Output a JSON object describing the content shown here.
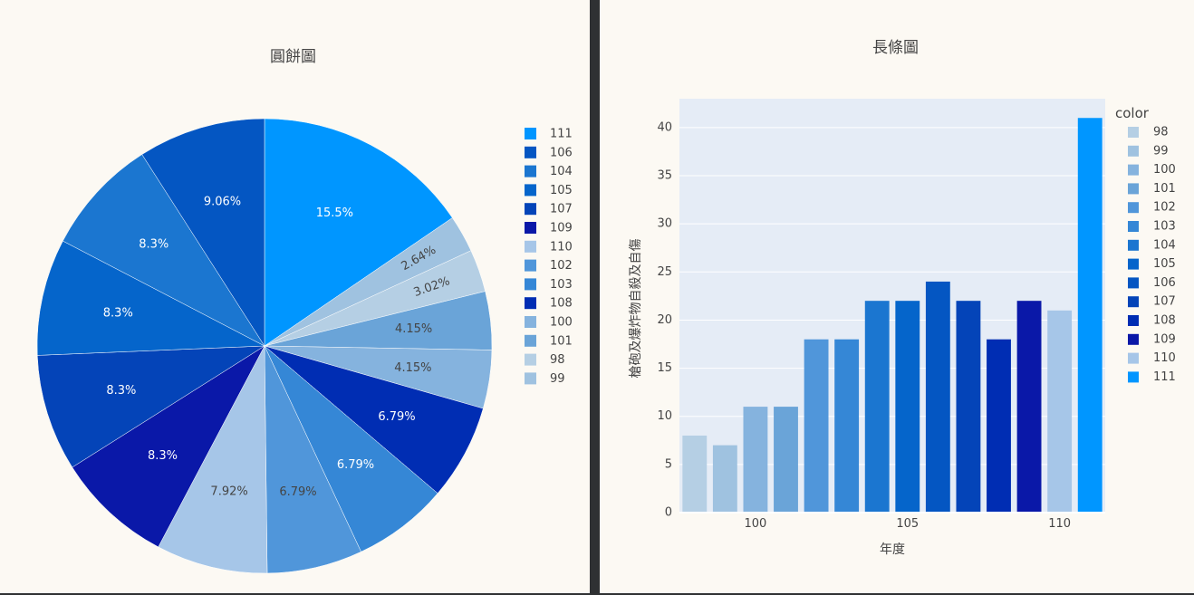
{
  "pie_panel": {
    "title": "圓餅圖"
  },
  "bar_panel": {
    "title": "長條圖",
    "legend_title": "color"
  },
  "chart_data": [
    {
      "type": "pie",
      "title": "圓餅圖",
      "slices": [
        {
          "label": "111",
          "value": 41,
          "percent_label": "15.5%",
          "color": "#0096ff",
          "text_color": "#ffffff"
        },
        {
          "label": "99",
          "value": 7,
          "percent_label": "2.64%",
          "color": "#9fc2e0",
          "text_color": "#444444"
        },
        {
          "label": "98",
          "value": 8,
          "percent_label": "3.02%",
          "color": "#b5cfe4",
          "text_color": "#444444"
        },
        {
          "label": "101",
          "value": 11,
          "percent_label": "4.15%",
          "color": "#6aa4d8",
          "text_color": "#444444"
        },
        {
          "label": "100",
          "value": 11,
          "percent_label": "4.15%",
          "color": "#85b3de",
          "text_color": "#444444"
        },
        {
          "label": "108",
          "value": 18,
          "percent_label": "6.79%",
          "color": "#002db3",
          "text_color": "#ffffff"
        },
        {
          "label": "103",
          "value": 18,
          "percent_label": "6.79%",
          "color": "#3587d6",
          "text_color": "#ffffff"
        },
        {
          "label": "102",
          "value": 18,
          "percent_label": "6.79%",
          "color": "#5096da",
          "text_color": "#444444"
        },
        {
          "label": "110",
          "value": 21,
          "percent_label": "7.92%",
          "color": "#a6c6e8",
          "text_color": "#444444"
        },
        {
          "label": "109",
          "value": 22,
          "percent_label": "8.3%",
          "color": "#0a18a8",
          "text_color": "#ffffff"
        },
        {
          "label": "107",
          "value": 22,
          "percent_label": "8.3%",
          "color": "#0444b8",
          "text_color": "#ffffff"
        },
        {
          "label": "105",
          "value": 22,
          "percent_label": "8.3%",
          "color": "#0565cb",
          "text_color": "#ffffff"
        },
        {
          "label": "104",
          "value": 22,
          "percent_label": "8.3%",
          "color": "#1b76d0",
          "text_color": "#ffffff"
        },
        {
          "label": "106",
          "value": 24,
          "percent_label": "9.06%",
          "color": "#0456c2",
          "text_color": "#ffffff"
        }
      ],
      "legend": [
        "111",
        "106",
        "104",
        "105",
        "107",
        "109",
        "110",
        "102",
        "103",
        "108",
        "100",
        "101",
        "98",
        "99"
      ]
    },
    {
      "type": "bar",
      "title": "長條圖",
      "xlabel": "年度",
      "ylabel": "槍砲及爆炸物自殺及自傷",
      "legend_title": "color",
      "categories": [
        "98",
        "99",
        "100",
        "101",
        "102",
        "103",
        "104",
        "105",
        "106",
        "107",
        "108",
        "109",
        "110",
        "111"
      ],
      "x": [
        98,
        99,
        100,
        101,
        102,
        103,
        104,
        105,
        106,
        107,
        108,
        109,
        110,
        111
      ],
      "values": [
        8,
        7,
        11,
        11,
        18,
        18,
        22,
        22,
        24,
        22,
        18,
        22,
        21,
        41
      ],
      "colors": [
        "#b5cfe4",
        "#9fc2e0",
        "#85b3de",
        "#6aa4d8",
        "#5096da",
        "#3587d6",
        "#1b76d0",
        "#0565cb",
        "#0456c2",
        "#0444b8",
        "#002db3",
        "#0a18a8",
        "#a6c6e8",
        "#0096ff"
      ],
      "xticks": [
        "100",
        "105",
        "110"
      ],
      "yticks": [
        "0",
        "5",
        "10",
        "15",
        "20",
        "25",
        "30",
        "35",
        "40"
      ],
      "ylim": [
        0,
        43
      ],
      "grid": true,
      "legend_position": "right"
    }
  ]
}
